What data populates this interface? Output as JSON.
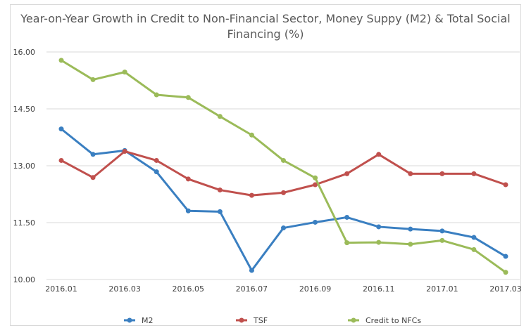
{
  "chart_data": {
    "type": "line",
    "title": "Year-on-Year Growth in Credit to Non-Financial Sector, Money Suppy (M2) & Total Social Financing (%)",
    "categories": [
      "2016.01",
      "2016.02",
      "2016.03",
      "2016.04",
      "2016.05",
      "2016.06",
      "2016.07",
      "2016.08",
      "2016.09",
      "2016.10",
      "2016.11",
      "2016.12",
      "2017.01",
      "2017.02",
      "2017.03"
    ],
    "x_tick_labels": [
      "2016.01",
      "2016.03",
      "2016.05",
      "2016.07",
      "2016.09",
      "2016.11",
      "2017.01",
      "2017.03"
    ],
    "y_ticks": [
      "10.00",
      "11.50",
      "13.00",
      "14.50",
      "16.00"
    ],
    "ylim": [
      10,
      16
    ],
    "grid": true,
    "legend_position": "bottom",
    "series": [
      {
        "name": "M2",
        "color": "#3a7fc1",
        "values": [
          13.97,
          13.3,
          13.4,
          12.84,
          11.81,
          11.79,
          10.24,
          11.36,
          11.51,
          11.64,
          11.39,
          11.33,
          11.28,
          11.11,
          10.61
        ]
      },
      {
        "name": "TSF",
        "color": "#c0504d",
        "values": [
          13.14,
          12.69,
          13.38,
          13.14,
          12.65,
          12.36,
          12.22,
          12.29,
          12.5,
          12.79,
          13.3,
          12.79,
          12.79,
          12.79,
          12.5
        ]
      },
      {
        "name": "Credit to NFCs",
        "color": "#9bbb59",
        "values": [
          15.78,
          15.27,
          15.47,
          14.87,
          14.8,
          14.3,
          13.81,
          13.14,
          12.68,
          10.97,
          10.98,
          10.93,
          11.03,
          10.79,
          10.19
        ]
      }
    ]
  }
}
